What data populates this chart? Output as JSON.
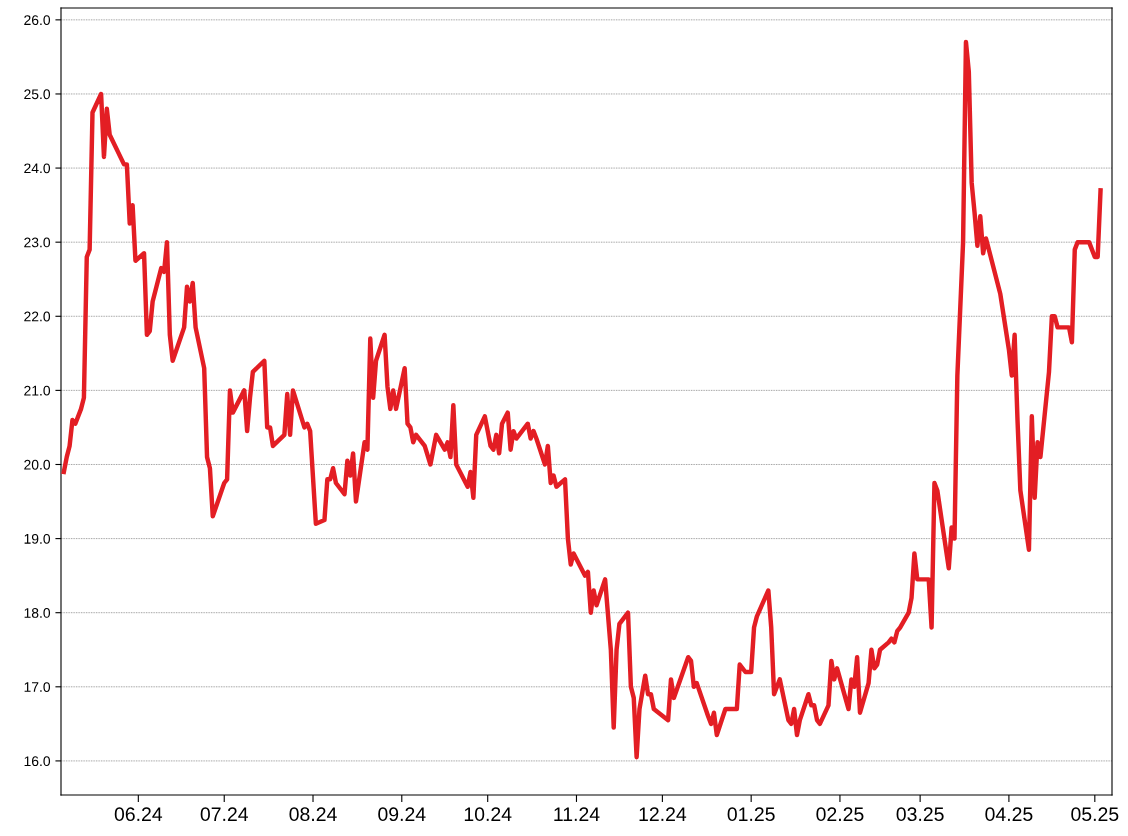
{
  "chart_data": {
    "type": "line",
    "grid": "y",
    "line_style": "solid",
    "xlim": [
      "2024-05-05",
      "2025-05-07"
    ],
    "xticks": [
      {
        "value": "2024-06-01",
        "label": "06.24"
      },
      {
        "value": "2024-07-01",
        "label": "07.24"
      },
      {
        "value": "2024-08-01",
        "label": "08.24"
      },
      {
        "value": "2024-09-01",
        "label": "09.24"
      },
      {
        "value": "2024-10-01",
        "label": "10.24"
      },
      {
        "value": "2024-11-01",
        "label": "11.24"
      },
      {
        "value": "2024-12-01",
        "label": "12.24"
      },
      {
        "value": "2025-01-01",
        "label": "01.25"
      },
      {
        "value": "2025-02-01",
        "label": "02.25"
      },
      {
        "value": "2025-03-01",
        "label": "03.25"
      },
      {
        "value": "2025-04-01",
        "label": "04.25"
      },
      {
        "value": "2025-05-01",
        "label": "05.25"
      }
    ],
    "ylim": [
      15.54,
      26.16
    ],
    "yticks": [
      {
        "value": 16,
        "label": "16.0"
      },
      {
        "value": 17,
        "label": "17.0"
      },
      {
        "value": 18,
        "label": "18.0"
      },
      {
        "value": 19,
        "label": "19.0"
      },
      {
        "value": 20,
        "label": "20.0"
      },
      {
        "value": 21,
        "label": "21.0"
      },
      {
        "value": 22,
        "label": "22.0"
      },
      {
        "value": 23,
        "label": "23.0"
      },
      {
        "value": 24,
        "label": "24.0"
      },
      {
        "value": 25,
        "label": "25.0"
      },
      {
        "value": 26,
        "label": "26.0"
      }
    ],
    "series": [
      {
        "color": "#e31e24",
        "x": [
          "2024-05-06",
          "2024-05-07",
          "2024-05-08",
          "2024-05-09",
          "2024-05-10",
          "2024-05-12",
          "2024-05-13",
          "2024-05-14",
          "2024-05-15",
          "2024-05-16",
          "2024-05-19",
          "2024-05-20",
          "2024-05-21",
          "2024-05-22",
          "2024-05-27",
          "2024-05-28",
          "2024-05-29",
          "2024-05-30",
          "2024-05-31",
          "2024-06-03",
          "2024-06-04",
          "2024-06-05",
          "2024-06-06",
          "2024-06-09",
          "2024-06-10",
          "2024-06-11",
          "2024-06-12",
          "2024-06-13",
          "2024-06-17",
          "2024-06-18",
          "2024-06-19",
          "2024-06-20",
          "2024-06-21",
          "2024-06-24",
          "2024-06-25",
          "2024-06-26",
          "2024-06-27",
          "2024-07-01",
          "2024-07-02",
          "2024-07-03",
          "2024-07-04",
          "2024-07-08",
          "2024-07-09",
          "2024-07-10",
          "2024-07-11",
          "2024-07-15",
          "2024-07-16",
          "2024-07-17",
          "2024-07-18",
          "2024-07-22",
          "2024-07-23",
          "2024-07-24",
          "2024-07-25",
          "2024-07-29",
          "2024-07-30",
          "2024-07-31",
          "2024-08-02",
          "2024-08-05",
          "2024-08-06",
          "2024-08-07",
          "2024-08-08",
          "2024-08-09",
          "2024-08-12",
          "2024-08-13",
          "2024-08-14",
          "2024-08-15",
          "2024-08-16",
          "2024-08-19",
          "2024-08-20",
          "2024-08-21",
          "2024-08-22",
          "2024-08-23",
          "2024-08-26",
          "2024-08-27",
          "2024-08-28",
          "2024-08-29",
          "2024-08-30",
          "2024-09-02",
          "2024-09-03",
          "2024-09-04",
          "2024-09-05",
          "2024-09-06",
          "2024-09-09",
          "2024-09-11",
          "2024-09-13",
          "2024-09-16",
          "2024-09-17",
          "2024-09-18",
          "2024-09-19",
          "2024-09-20",
          "2024-09-24",
          "2024-09-25",
          "2024-09-26",
          "2024-09-27",
          "2024-09-30",
          "2024-10-02",
          "2024-10-03",
          "2024-10-04",
          "2024-10-05",
          "2024-10-06",
          "2024-10-08",
          "2024-10-09",
          "2024-10-10",
          "2024-10-11",
          "2024-10-15",
          "2024-10-16",
          "2024-10-17",
          "2024-10-18",
          "2024-10-21",
          "2024-10-22",
          "2024-10-23",
          "2024-10-24",
          "2024-10-25",
          "2024-10-28",
          "2024-10-29",
          "2024-10-30",
          "2024-10-31",
          "2024-11-04",
          "2024-11-05",
          "2024-11-06",
          "2024-11-07",
          "2024-11-08",
          "2024-11-11",
          "2024-11-13",
          "2024-11-14",
          "2024-11-15",
          "2024-11-16",
          "2024-11-19",
          "2024-11-20",
          "2024-11-21",
          "2024-11-22",
          "2024-11-23",
          "2024-11-25",
          "2024-11-26",
          "2024-11-27",
          "2024-11-28",
          "2024-12-03",
          "2024-12-04",
          "2024-12-05",
          "2024-12-10",
          "2024-12-11",
          "2024-12-12",
          "2024-12-13",
          "2024-12-17",
          "2024-12-18",
          "2024-12-19",
          "2024-12-20",
          "2024-12-23",
          "2024-12-27",
          "2024-12-28",
          "2024-12-30",
          "2025-01-01",
          "2025-01-02",
          "2025-01-03",
          "2025-01-07",
          "2025-01-08",
          "2025-01-09",
          "2025-01-10",
          "2025-01-11",
          "2025-01-14",
          "2025-01-15",
          "2025-01-16",
          "2025-01-17",
          "2025-01-18",
          "2025-01-21",
          "2025-01-22",
          "2025-01-23",
          "2025-01-24",
          "2025-01-25",
          "2025-01-28",
          "2025-01-29",
          "2025-01-30",
          "2025-01-31",
          "2025-02-04",
          "2025-02-05",
          "2025-02-06",
          "2025-02-07",
          "2025-02-08",
          "2025-02-11",
          "2025-02-12",
          "2025-02-13",
          "2025-02-14",
          "2025-02-15",
          "2025-02-18",
          "2025-02-19",
          "2025-02-20",
          "2025-02-21",
          "2025-02-22",
          "2025-02-25",
          "2025-02-26",
          "2025-02-27",
          "2025-02-28",
          "2025-03-04",
          "2025-03-05",
          "2025-03-06",
          "2025-03-07",
          "2025-03-11",
          "2025-03-12",
          "2025-03-13",
          "2025-03-14",
          "2025-03-16",
          "2025-03-17",
          "2025-03-18",
          "2025-03-19",
          "2025-03-20",
          "2025-03-21",
          "2025-03-22",
          "2025-03-23",
          "2025-03-24",
          "2025-03-29",
          "2025-04-01",
          "2025-04-02",
          "2025-04-03",
          "2025-04-04",
          "2025-04-05",
          "2025-04-08",
          "2025-04-09",
          "2025-04-10",
          "2025-04-11",
          "2025-04-12",
          "2025-04-15",
          "2025-04-16",
          "2025-04-17",
          "2025-04-18",
          "2025-04-22",
          "2025-04-23",
          "2025-04-24",
          "2025-04-25",
          "2025-04-29",
          "2025-05-01",
          "2025-05-02",
          "2025-05-03"
        ],
        "values": [
          19.9,
          20.1,
          20.25,
          20.6,
          20.55,
          20.75,
          20.9,
          22.8,
          22.9,
          24.75,
          25.0,
          24.15,
          24.8,
          24.45,
          24.05,
          24.05,
          23.25,
          23.5,
          22.75,
          22.85,
          21.75,
          21.8,
          22.2,
          22.65,
          22.6,
          23.0,
          21.75,
          21.4,
          21.85,
          22.4,
          22.2,
          22.45,
          21.85,
          21.3,
          20.1,
          19.95,
          19.3,
          19.75,
          19.8,
          21.0,
          20.7,
          21.0,
          20.45,
          20.9,
          21.25,
          21.4,
          20.5,
          20.5,
          20.25,
          20.4,
          20.95,
          20.4,
          21.0,
          20.5,
          20.55,
          20.45,
          19.2,
          19.25,
          19.8,
          19.8,
          19.95,
          19.75,
          19.6,
          20.05,
          19.85,
          20.15,
          19.5,
          20.3,
          20.2,
          21.7,
          20.9,
          21.4,
          21.75,
          21.05,
          20.75,
          21.0,
          20.75,
          21.3,
          20.55,
          20.5,
          20.3,
          20.4,
          20.25,
          20.0,
          20.4,
          20.2,
          20.3,
          20.1,
          20.8,
          20.0,
          19.7,
          19.9,
          19.55,
          20.4,
          20.65,
          20.25,
          20.2,
          20.4,
          20.15,
          20.55,
          20.7,
          20.2,
          20.45,
          20.35,
          20.55,
          20.35,
          20.45,
          20.35,
          20.0,
          20.25,
          19.75,
          19.85,
          19.7,
          19.8,
          19.0,
          18.65,
          18.8,
          18.5,
          18.55,
          18.0,
          18.3,
          18.1,
          18.45,
          17.5,
          16.45,
          17.5,
          17.85,
          18.0,
          17.0,
          16.85,
          16.05,
          16.7,
          17.15,
          16.9,
          16.9,
          16.7,
          16.55,
          17.1,
          16.85,
          17.4,
          17.35,
          17.0,
          17.05,
          16.6,
          16.5,
          16.65,
          16.35,
          16.7,
          16.7,
          17.3,
          17.2,
          17.2,
          17.8,
          17.95,
          18.3,
          17.8,
          16.9,
          17.0,
          17.1,
          16.55,
          16.5,
          16.7,
          16.35,
          16.55,
          16.9,
          16.75,
          16.75,
          16.55,
          16.5,
          16.75,
          17.35,
          17.1,
          17.25,
          16.7,
          17.1,
          17.0,
          17.4,
          16.65,
          17.05,
          17.5,
          17.25,
          17.3,
          17.5,
          17.6,
          17.65,
          17.6,
          17.75,
          17.8,
          18.0,
          18.2,
          18.8,
          18.45,
          18.45,
          17.8,
          19.75,
          19.65,
          18.6,
          19.15,
          19.0,
          21.2,
          23.0,
          25.7,
          25.3,
          23.8,
          23.4,
          22.95,
          23.35,
          22.85,
          23.05,
          22.3,
          21.55,
          21.2,
          21.75,
          20.6,
          19.65,
          18.85,
          20.65,
          19.55,
          20.3,
          20.1,
          21.25,
          22.0,
          22.0,
          21.85,
          21.85,
          21.65,
          22.9,
          23.0,
          23.0,
          22.8,
          22.8,
          23.7
        ]
      }
    ]
  }
}
